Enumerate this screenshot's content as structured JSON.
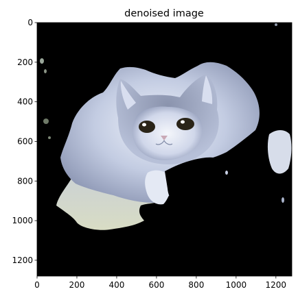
{
  "chart_data": {
    "type": "heatmap",
    "title": "denoised image",
    "xlabel": "",
    "ylabel": "",
    "xlim": [
      0,
      1280
    ],
    "ylim": [
      1280,
      0
    ],
    "x_ticks": [
      0,
      200,
      400,
      600,
      800,
      1000,
      1200
    ],
    "y_ticks": [
      0,
      200,
      400,
      600,
      800,
      1000,
      1200
    ],
    "grid": false,
    "legend": "none",
    "image_content": "kitten-photo-with-black-background",
    "colors": {
      "background": "#000000",
      "fur_light": "#e8eef8",
      "fur_mid": "#b8c3dc",
      "fur_shadow": "#7f8aa6",
      "fur_edge": "#d9e0c8",
      "eye": "#2a2418",
      "nose": "#c9a9b6"
    }
  }
}
